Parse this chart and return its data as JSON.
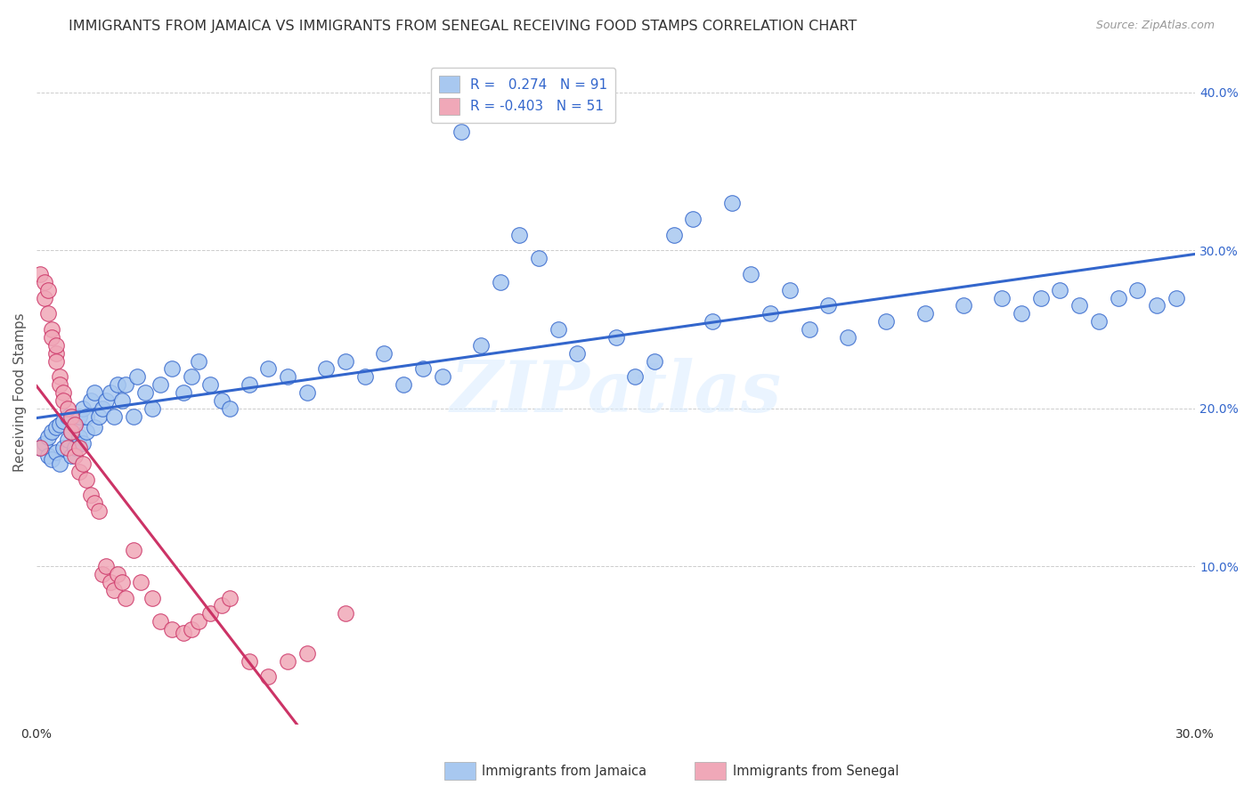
{
  "title": "IMMIGRANTS FROM JAMAICA VS IMMIGRANTS FROM SENEGAL RECEIVING FOOD STAMPS CORRELATION CHART",
  "source": "Source: ZipAtlas.com",
  "ylabel": "Receiving Food Stamps",
  "xlim": [
    0.0,
    0.3
  ],
  "ylim": [
    0.0,
    0.42
  ],
  "xticks": [
    0.0,
    0.05,
    0.1,
    0.15,
    0.2,
    0.25,
    0.3
  ],
  "yticks": [
    0.0,
    0.1,
    0.2,
    0.3,
    0.4
  ],
  "legend_r_jamaica": "0.274",
  "legend_n_jamaica": "91",
  "legend_r_senegal": "-0.403",
  "legend_n_senegal": "51",
  "color_jamaica": "#a8c8f0",
  "color_senegal": "#f0a8b8",
  "color_trendline_jamaica": "#3366cc",
  "color_trendline_senegal": "#cc3366",
  "background_color": "#ffffff",
  "watermark": "ZIPatlas",
  "jamaica_x": [
    0.001,
    0.002,
    0.003,
    0.003,
    0.004,
    0.004,
    0.005,
    0.005,
    0.006,
    0.006,
    0.007,
    0.007,
    0.008,
    0.008,
    0.009,
    0.009,
    0.01,
    0.01,
    0.011,
    0.011,
    0.012,
    0.012,
    0.013,
    0.013,
    0.014,
    0.015,
    0.015,
    0.016,
    0.017,
    0.018,
    0.019,
    0.02,
    0.021,
    0.022,
    0.023,
    0.025,
    0.026,
    0.028,
    0.03,
    0.032,
    0.035,
    0.038,
    0.04,
    0.042,
    0.045,
    0.048,
    0.05,
    0.055,
    0.06,
    0.065,
    0.07,
    0.075,
    0.08,
    0.085,
    0.09,
    0.095,
    0.1,
    0.105,
    0.11,
    0.115,
    0.12,
    0.125,
    0.13,
    0.135,
    0.14,
    0.15,
    0.155,
    0.16,
    0.165,
    0.17,
    0.175,
    0.18,
    0.185,
    0.19,
    0.195,
    0.2,
    0.205,
    0.21,
    0.22,
    0.23,
    0.24,
    0.25,
    0.255,
    0.26,
    0.265,
    0.27,
    0.275,
    0.28,
    0.285,
    0.29,
    0.295
  ],
  "jamaica_y": [
    0.175,
    0.178,
    0.17,
    0.182,
    0.168,
    0.185,
    0.172,
    0.188,
    0.165,
    0.19,
    0.175,
    0.192,
    0.18,
    0.195,
    0.17,
    0.185,
    0.175,
    0.19,
    0.182,
    0.195,
    0.178,
    0.2,
    0.185,
    0.195,
    0.205,
    0.188,
    0.21,
    0.195,
    0.2,
    0.205,
    0.21,
    0.195,
    0.215,
    0.205,
    0.215,
    0.195,
    0.22,
    0.21,
    0.2,
    0.215,
    0.225,
    0.21,
    0.22,
    0.23,
    0.215,
    0.205,
    0.2,
    0.215,
    0.225,
    0.22,
    0.21,
    0.225,
    0.23,
    0.22,
    0.235,
    0.215,
    0.225,
    0.22,
    0.375,
    0.24,
    0.28,
    0.31,
    0.295,
    0.25,
    0.235,
    0.245,
    0.22,
    0.23,
    0.31,
    0.32,
    0.255,
    0.33,
    0.285,
    0.26,
    0.275,
    0.25,
    0.265,
    0.245,
    0.255,
    0.26,
    0.265,
    0.27,
    0.26,
    0.27,
    0.275,
    0.265,
    0.255,
    0.27,
    0.275,
    0.265,
    0.27
  ],
  "senegal_x": [
    0.001,
    0.001,
    0.002,
    0.002,
    0.003,
    0.003,
    0.004,
    0.004,
    0.005,
    0.005,
    0.005,
    0.006,
    0.006,
    0.007,
    0.007,
    0.008,
    0.008,
    0.009,
    0.009,
    0.01,
    0.01,
    0.011,
    0.011,
    0.012,
    0.013,
    0.014,
    0.015,
    0.016,
    0.017,
    0.018,
    0.019,
    0.02,
    0.021,
    0.022,
    0.023,
    0.025,
    0.027,
    0.03,
    0.032,
    0.035,
    0.038,
    0.04,
    0.042,
    0.045,
    0.048,
    0.05,
    0.055,
    0.06,
    0.065,
    0.07,
    0.08
  ],
  "senegal_y": [
    0.175,
    0.285,
    0.27,
    0.28,
    0.26,
    0.275,
    0.25,
    0.245,
    0.235,
    0.24,
    0.23,
    0.22,
    0.215,
    0.21,
    0.205,
    0.2,
    0.175,
    0.195,
    0.185,
    0.19,
    0.17,
    0.16,
    0.175,
    0.165,
    0.155,
    0.145,
    0.14,
    0.135,
    0.095,
    0.1,
    0.09,
    0.085,
    0.095,
    0.09,
    0.08,
    0.11,
    0.09,
    0.08,
    0.065,
    0.06,
    0.058,
    0.06,
    0.065,
    0.07,
    0.075,
    0.08,
    0.04,
    0.03,
    0.04,
    0.045,
    0.07
  ],
  "title_fontsize": 11.5,
  "axis_label_fontsize": 11,
  "tick_fontsize": 10,
  "legend_fontsize": 11
}
